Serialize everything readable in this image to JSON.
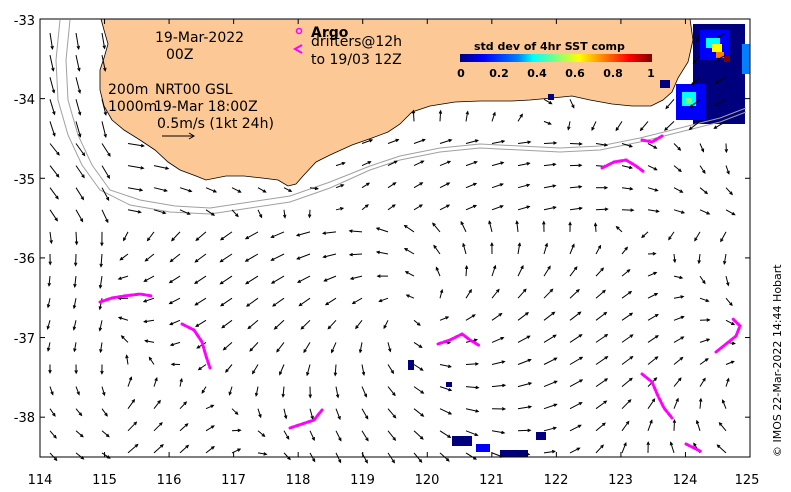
{
  "map": {
    "date_line": "19-Mar-2022",
    "time_line": "00Z",
    "depth_200": "200m",
    "depth_1000": "1000m",
    "product": "NRT00 GSL",
    "product_time": "19-Mar 18:00Z",
    "scale_label": "0.5m/s (1kt 24h)",
    "argo_label": "Argo",
    "drifters_label": "drifters@12h",
    "drifters_to": "to 19/03 12Z",
    "colorbar_title": "std dev of 4hr SST comp",
    "colorbar_ticks": [
      "0",
      "0.2",
      "0.4",
      "0.6",
      "0.8",
      "1"
    ],
    "credit": "© IMOS 22-Mar-2022 14:44 Hobart",
    "x_ticks": [
      "114",
      "115",
      "116",
      "117",
      "118",
      "119",
      "120",
      "121",
      "122",
      "123",
      "124",
      "125"
    ],
    "y_ticks": [
      "-33",
      "-34",
      "-35",
      "-36",
      "-37",
      "-38"
    ],
    "x_range": [
      114,
      125
    ],
    "y_range": [
      -38.5,
      -33
    ],
    "land_color": "#fcc896",
    "drifter_color": "#ff00ff",
    "isobath_color": "#a0a0a0",
    "colorbar_colors": [
      "#00007f",
      "#0000ff",
      "#007fff",
      "#00ffff",
      "#7fff7f",
      "#ffff00",
      "#ff7f00",
      "#ff0000",
      "#7f0000"
    ]
  }
}
